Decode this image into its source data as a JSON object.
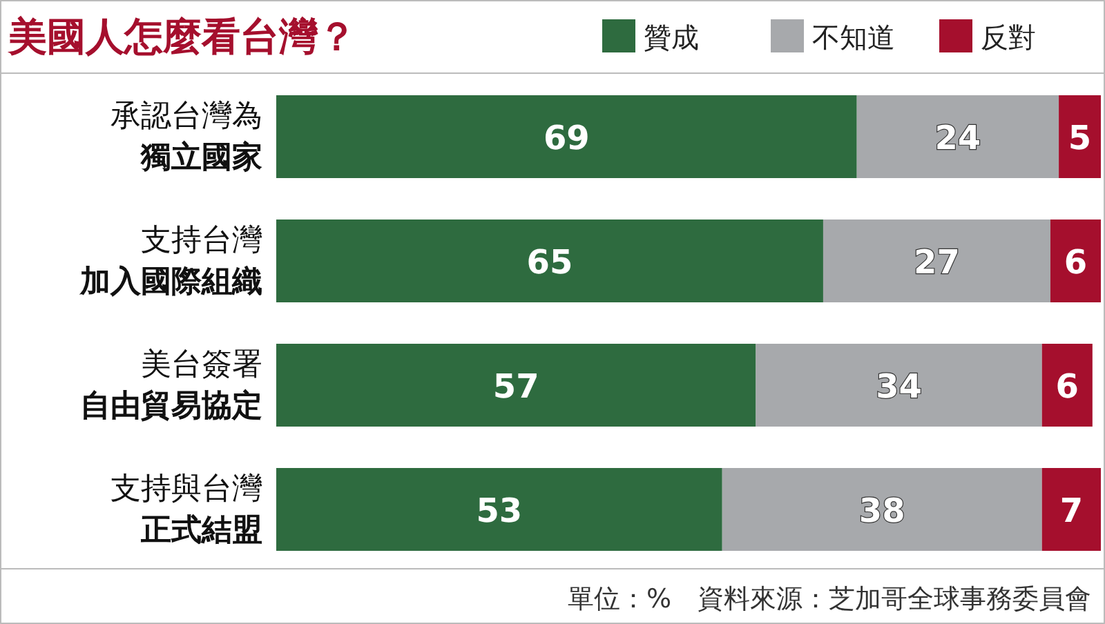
{
  "chart_data": {
    "type": "bar",
    "orientation": "horizontal",
    "stacked": true,
    "title": "美國人怎麼看台灣？",
    "categories": [
      "承認台灣為獨立國家",
      "支持台灣加入國際組織",
      "美台簽署自由貿易協定",
      "支持與台灣正式結盟"
    ],
    "series": [
      {
        "name": "贊成",
        "color": "#2e6b3f",
        "values": [
          69,
          65,
          57,
          53
        ]
      },
      {
        "name": "不知道",
        "color": "#a7a9ac",
        "values": [
          24,
          27,
          34,
          38
        ]
      },
      {
        "name": "反對",
        "color": "#a50f2d",
        "values": [
          5,
          6,
          6,
          7
        ]
      }
    ],
    "data_labels": true,
    "legend": "top right",
    "annotations": [
      "單位：%　資料來源：芝加哥全球事務委員會"
    ]
  }
}
